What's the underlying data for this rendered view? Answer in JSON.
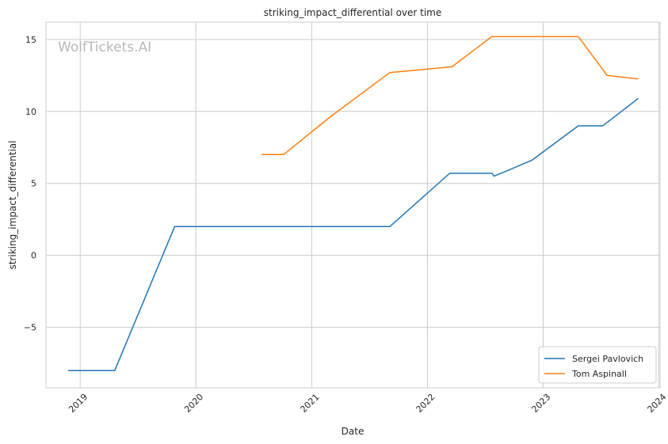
{
  "chart_data": {
    "type": "line",
    "title": "striking_impact_differential over time",
    "xlabel": "Date",
    "ylabel": "striking_impact_differential",
    "watermark": "WolfTickets.AI",
    "x_ticks": [
      "2019",
      "2020",
      "2021",
      "2022",
      "2023",
      "2024"
    ],
    "y_ticks": [
      "−5",
      "0",
      "5",
      "10",
      "15"
    ],
    "xlim": [
      "2018-09-15",
      "2024-01-05"
    ],
    "ylim": [
      -9.2,
      16.2
    ],
    "grid": true,
    "legend_position": "lower-right",
    "series": [
      {
        "name": "Sergei Pavlovich",
        "color": "#1f77b4",
        "points": [
          [
            "2018-11-24",
            -8.0
          ],
          [
            "2019-04-20",
            -8.0
          ],
          [
            "2019-10-26",
            2.0
          ],
          [
            "2021-09-04",
            2.0
          ],
          [
            "2022-03-12",
            5.7
          ],
          [
            "2022-07-24",
            5.7
          ],
          [
            "2022-07-30",
            5.5
          ],
          [
            "2022-11-26",
            6.6
          ],
          [
            "2023-04-22",
            9.0
          ],
          [
            "2023-07-08",
            9.0
          ],
          [
            "2023-10-28",
            10.9
          ]
        ]
      },
      {
        "name": "Tom Aspinall",
        "color": "#ff7f0e",
        "points": [
          [
            "2020-07-26",
            7.0
          ],
          [
            "2020-10-04",
            7.0
          ],
          [
            "2021-02-27",
            9.6
          ],
          [
            "2021-09-04",
            12.7
          ],
          [
            "2022-03-19",
            13.1
          ],
          [
            "2022-07-23",
            15.2
          ],
          [
            "2023-04-22",
            15.2
          ],
          [
            "2023-07-22",
            12.5
          ],
          [
            "2023-10-28",
            12.25
          ]
        ]
      }
    ]
  }
}
